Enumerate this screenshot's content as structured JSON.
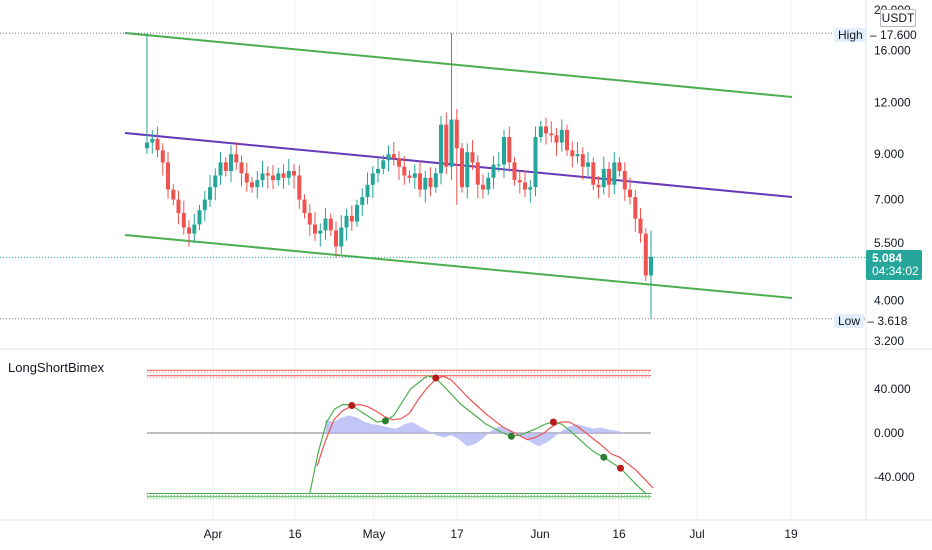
{
  "currency": "USDT",
  "indicator_name": "LongShortBimex",
  "price_tags": {
    "high_label": "High",
    "high_value": "17.600",
    "low_label": "Low",
    "low_value": "3.618",
    "last_price": "5.084",
    "countdown": "04:34:02"
  },
  "price_axis": [
    "20.000",
    "16.000",
    "12.000",
    "9.000",
    "7.000",
    "5.500",
    "4.000",
    "3.200"
  ],
  "indicator_axis": [
    "40.000",
    "0.000",
    "-40.000"
  ],
  "time_axis": [
    "Apr",
    "16",
    "May",
    "17",
    "Jun",
    "16",
    "Jul",
    "19"
  ],
  "colors": {
    "up": "#26a69a",
    "down": "#ef5350",
    "channel": "#4caf50",
    "midline": "#673ab7",
    "osc_fast": "#4caf50",
    "osc_slow": "#ef5350",
    "histogram": "#b3b8f5",
    "dot_red": "#b71c1c",
    "dot_green": "#2e7d32"
  },
  "chart_data": [
    {
      "type": "candlestick",
      "scale": "log",
      "ylim": [
        3.2,
        20
      ],
      "high": 17.6,
      "low": 3.618,
      "last": 5.084,
      "closes": [
        9.6,
        9.8,
        9.2,
        8.6,
        7.4,
        7.0,
        6.5,
        6.0,
        5.8,
        6.1,
        6.6,
        7.0,
        7.5,
        8.0,
        8.6,
        8.2,
        9.0,
        8.6,
        8.1,
        7.7,
        7.5,
        7.8,
        8.1,
        8.0,
        7.8,
        8.1,
        7.9,
        8.2,
        8.0,
        7.0,
        6.5,
        6.1,
        5.8,
        5.9,
        6.3,
        5.9,
        5.4,
        6.0,
        6.4,
        6.2,
        6.8,
        7.1,
        7.6,
        8.1,
        8.3,
        8.7,
        9.0,
        8.8,
        8.4,
        8.0,
        7.9,
        8.1,
        7.4,
        7.9,
        7.5,
        8.1,
        10.6,
        8.4,
        10.9,
        9.3,
        7.5,
        9.1,
        8.6,
        7.6,
        7.4,
        7.9,
        8.5,
        8.5,
        9.9,
        8.6,
        7.8,
        7.7,
        7.4,
        7.5,
        9.9,
        10.5,
        10.1,
        10.0,
        9.6,
        10.3,
        9.2,
        8.9,
        9.0,
        8.4,
        8.6,
        7.6,
        7.5,
        8.3,
        7.6,
        8.6,
        8.2,
        7.4,
        7.1,
        6.3,
        5.8,
        4.6,
        5.1
      ]
    },
    {
      "type": "line",
      "name": "LongShortBimex",
      "ylim": [
        -62,
        72
      ],
      "levels": [
        57,
        52,
        -55,
        -58
      ],
      "fast_start": 31,
      "fast": [
        -55,
        -18,
        10,
        22,
        26,
        25,
        20,
        15,
        10,
        11,
        16,
        28,
        40,
        46,
        52,
        50,
        42,
        34,
        26,
        20,
        14,
        8,
        4,
        0,
        -3,
        -2,
        1,
        4,
        8,
        10,
        8,
        2,
        -5,
        -12,
        -18,
        -22,
        -27,
        -32,
        -40,
        -48,
        -55
      ],
      "slow": [
        -30,
        -7,
        12,
        20,
        24,
        26,
        24,
        20,
        15,
        12,
        13,
        18,
        30,
        40,
        48,
        52,
        48,
        40,
        32,
        25,
        18,
        12,
        6,
        2,
        -2,
        -6,
        -4,
        0,
        6,
        10,
        10,
        6,
        0,
        -6,
        -12,
        -19,
        -22,
        -28,
        -34,
        -42,
        -50
      ],
      "hist_start": 34,
      "histogram": [
        12,
        10,
        14,
        16,
        14,
        10,
        8,
        7,
        5,
        4,
        8,
        10,
        6,
        2,
        -2,
        -4,
        -2,
        -6,
        -12,
        -10,
        -5,
        2,
        6,
        4,
        0,
        -4,
        -8,
        -12,
        -9,
        -4,
        2,
        6,
        8,
        6,
        4,
        5,
        3,
        2,
        0
      ],
      "dots": [
        {
          "i": 5,
          "c": "red"
        },
        {
          "i": 9,
          "c": "green"
        },
        {
          "i": 15,
          "c": "red"
        },
        {
          "i": 24,
          "c": "green"
        },
        {
          "i": 29,
          "c": "red"
        },
        {
          "i": 35,
          "c": "green"
        },
        {
          "i": 37,
          "c": "red"
        }
      ]
    }
  ]
}
